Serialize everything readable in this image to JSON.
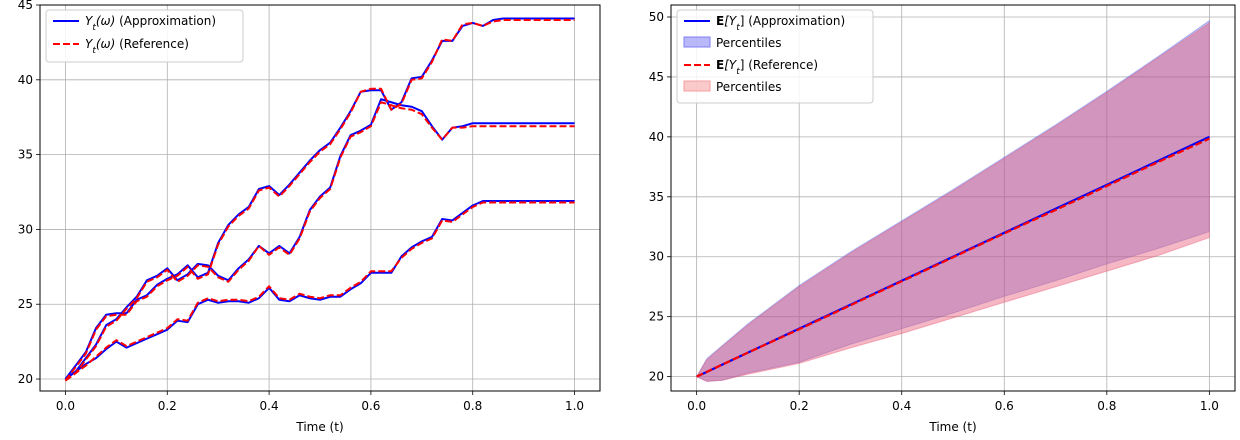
{
  "chart_data": [
    {
      "type": "line",
      "title": "",
      "xlabel": "Time (t)",
      "ylabel": "",
      "xlim": [
        -0.05,
        1.05
      ],
      "ylim": [
        19.2,
        45.0
      ],
      "xticks": [
        0.0,
        0.2,
        0.4,
        0.6,
        0.8,
        1.0
      ],
      "xtick_labels": [
        "0.0",
        "0.2",
        "0.4",
        "0.6",
        "0.8",
        "1.0"
      ],
      "yticks": [
        20,
        25,
        30,
        35,
        40,
        45
      ],
      "ytick_labels": [
        "20",
        "25",
        "30",
        "35",
        "40",
        "45"
      ],
      "grid": true,
      "legend": {
        "placement": "upper-left",
        "entries": [
          {
            "main": "Y",
            "sub": "t",
            "paren": "(ω)",
            "rest": "  (Approximation)",
            "color": "#0000ff",
            "style": "solid"
          },
          {
            "main": "Y",
            "sub": "t",
            "paren": "(ω)",
            "rest": " (Reference)",
            "color": "#ff0000",
            "style": "dashed"
          }
        ]
      },
      "x": [
        0.0,
        0.02,
        0.04,
        0.06,
        0.08,
        0.1,
        0.12,
        0.14,
        0.16,
        0.18,
        0.2,
        0.22,
        0.24,
        0.26,
        0.28,
        0.3,
        0.32,
        0.34,
        0.36,
        0.38,
        0.4,
        0.42,
        0.44,
        0.46,
        0.48,
        0.5,
        0.52,
        0.54,
        0.56,
        0.58,
        0.6,
        0.62,
        0.64,
        0.66,
        0.68,
        0.7,
        0.72,
        0.74,
        0.76,
        0.78,
        0.8,
        0.82,
        0.84,
        0.86,
        0.88,
        0.9,
        0.92,
        0.94,
        0.96,
        0.98,
        1.0
      ],
      "series": [
        {
          "role": "approximation",
          "color": "#0000ff",
          "values": [
            20.0,
            20.9,
            21.8,
            23.4,
            24.3,
            24.4,
            24.4,
            25.3,
            25.6,
            26.3,
            26.7,
            27.0,
            27.6,
            26.8,
            27.1,
            29.1,
            30.3,
            31.0,
            31.5,
            32.7,
            32.9,
            32.3,
            33.0,
            33.8,
            34.6,
            35.3,
            35.8,
            36.8,
            37.9,
            39.2,
            39.3,
            39.3,
            38.0,
            38.5,
            40.1,
            40.2,
            41.3,
            42.6,
            42.6,
            43.6,
            43.8,
            43.6,
            44.0,
            44.1,
            44.1,
            44.1,
            44.1,
            44.1,
            44.1,
            44.1,
            44.1
          ]
        },
        {
          "role": "approximation",
          "color": "#0000ff",
          "values": [
            20.0,
            20.5,
            21.4,
            22.3,
            23.6,
            24.0,
            24.8,
            25.5,
            26.6,
            26.9,
            27.4,
            26.6,
            27.0,
            27.7,
            27.6,
            26.9,
            26.6,
            27.4,
            28.0,
            28.9,
            28.4,
            28.9,
            28.4,
            29.5,
            31.3,
            32.2,
            32.8,
            34.9,
            36.3,
            36.6,
            37.0,
            38.7,
            38.5,
            38.3,
            38.2,
            37.9,
            36.9,
            36.0,
            36.8,
            36.9,
            37.1,
            37.1,
            37.1,
            37.1,
            37.1,
            37.1,
            37.1,
            37.1,
            37.1,
            37.1,
            37.1
          ]
        },
        {
          "role": "approximation",
          "color": "#0000ff",
          "values": [
            20.0,
            20.5,
            21.0,
            21.4,
            22.0,
            22.5,
            22.1,
            22.4,
            22.7,
            23.0,
            23.3,
            23.9,
            23.8,
            25.0,
            25.3,
            25.1,
            25.2,
            25.2,
            25.1,
            25.4,
            26.1,
            25.3,
            25.2,
            25.6,
            25.4,
            25.3,
            25.5,
            25.5,
            26.0,
            26.4,
            27.1,
            27.1,
            27.1,
            28.2,
            28.8,
            29.2,
            29.5,
            30.7,
            30.6,
            31.1,
            31.6,
            31.9,
            31.9,
            31.9,
            31.9,
            31.9,
            31.9,
            31.9,
            31.9,
            31.9,
            31.9
          ]
        },
        {
          "role": "reference",
          "color": "#ff0000",
          "values": [
            19.9,
            20.8,
            21.7,
            23.3,
            24.2,
            24.3,
            24.3,
            25.2,
            25.5,
            26.2,
            26.6,
            26.9,
            27.5,
            26.7,
            27.0,
            29.0,
            30.2,
            30.9,
            31.4,
            32.6,
            32.8,
            32.2,
            32.9,
            33.7,
            34.5,
            35.2,
            35.7,
            36.7,
            37.8,
            39.2,
            39.4,
            39.4,
            38.0,
            38.4,
            40.0,
            40.1,
            41.2,
            42.7,
            42.6,
            43.7,
            43.8,
            43.6,
            43.9,
            44.0,
            44.0,
            44.0,
            44.0,
            44.0,
            44.0,
            44.0,
            44.0
          ]
        },
        {
          "role": "reference",
          "color": "#ff0000",
          "values": [
            19.9,
            20.4,
            21.3,
            22.2,
            23.5,
            23.9,
            24.7,
            25.4,
            26.5,
            26.8,
            27.3,
            26.5,
            26.9,
            27.6,
            27.5,
            26.8,
            26.5,
            27.3,
            27.9,
            28.9,
            28.3,
            28.8,
            28.3,
            29.4,
            31.2,
            32.1,
            32.7,
            34.8,
            36.2,
            36.5,
            36.9,
            38.5,
            38.3,
            38.1,
            38.0,
            37.7,
            36.8,
            36.0,
            36.8,
            36.8,
            36.9,
            36.9,
            36.9,
            36.9,
            36.9,
            36.9,
            36.9,
            36.9,
            36.9,
            36.9,
            36.9
          ]
        },
        {
          "role": "reference",
          "color": "#ff0000",
          "values": [
            19.9,
            20.4,
            20.9,
            21.5,
            22.1,
            22.6,
            22.2,
            22.5,
            22.8,
            23.1,
            23.4,
            24.0,
            23.9,
            25.1,
            25.4,
            25.2,
            25.3,
            25.3,
            25.2,
            25.5,
            26.2,
            25.4,
            25.3,
            25.7,
            25.5,
            25.4,
            25.6,
            25.6,
            26.1,
            26.5,
            27.2,
            27.2,
            27.2,
            28.1,
            28.7,
            29.1,
            29.4,
            30.6,
            30.5,
            31.0,
            31.5,
            31.8,
            31.8,
            31.8,
            31.8,
            31.8,
            31.8,
            31.8,
            31.8,
            31.8,
            31.8
          ]
        }
      ]
    },
    {
      "type": "line",
      "title": "",
      "xlabel": "Time (t)",
      "ylabel": "",
      "xlim": [
        -0.05,
        1.05
      ],
      "ylim": [
        18.8,
        51.0
      ],
      "xticks": [
        0.0,
        0.2,
        0.4,
        0.6,
        0.8,
        1.0
      ],
      "xtick_labels": [
        "0.0",
        "0.2",
        "0.4",
        "0.6",
        "0.8",
        "1.0"
      ],
      "yticks": [
        20,
        25,
        30,
        35,
        40,
        45,
        50
      ],
      "ytick_labels": [
        "20",
        "25",
        "30",
        "35",
        "40",
        "45",
        "50"
      ],
      "grid": true,
      "legend": {
        "placement": "upper-left",
        "entries": [
          {
            "kind": "line",
            "bold": "E",
            "main": "[Y",
            "sub": "t",
            "rest": "] (Approximation)",
            "color": "#0000ff",
            "style": "solid"
          },
          {
            "kind": "patch",
            "label": "Percentiles",
            "color": "#0000ff"
          },
          {
            "kind": "line",
            "bold": "E",
            "main": "[Y",
            "sub": "t",
            "rest": "] (Reference)",
            "color": "#ff0000",
            "style": "dashed"
          },
          {
            "kind": "patch",
            "label": "Percentiles",
            "color": "#ff0000"
          }
        ]
      },
      "x": [
        0.0,
        0.02,
        0.05,
        0.1,
        0.2,
        0.3,
        0.4,
        0.5,
        0.6,
        0.7,
        0.8,
        0.9,
        1.0
      ],
      "mean_approx": [
        20.0,
        20.4,
        21.0,
        22.0,
        24.0,
        26.0,
        28.0,
        30.0,
        32.0,
        34.0,
        36.0,
        38.0,
        40.0
      ],
      "mean_ref": [
        20.0,
        20.4,
        21.0,
        22.0,
        23.95,
        25.95,
        27.95,
        29.95,
        31.95,
        33.9,
        35.9,
        37.9,
        39.85
      ],
      "band_approx": {
        "upper": [
          20.0,
          21.5,
          22.6,
          24.4,
          27.6,
          30.4,
          33.0,
          35.6,
          38.3,
          41.0,
          43.8,
          46.7,
          49.7
        ],
        "lower": [
          20.0,
          19.6,
          19.7,
          20.3,
          21.2,
          22.7,
          24.0,
          25.3,
          26.7,
          28.0,
          29.4,
          30.7,
          32.1
        ]
      },
      "band_ref": {
        "upper": [
          20.0,
          21.4,
          22.5,
          24.3,
          27.5,
          30.3,
          32.9,
          35.5,
          38.2,
          40.9,
          43.7,
          46.6,
          49.5
        ],
        "lower": [
          20.0,
          19.6,
          19.7,
          20.2,
          21.1,
          22.4,
          23.6,
          24.9,
          26.2,
          27.5,
          28.8,
          30.1,
          31.6
        ]
      }
    }
  ]
}
